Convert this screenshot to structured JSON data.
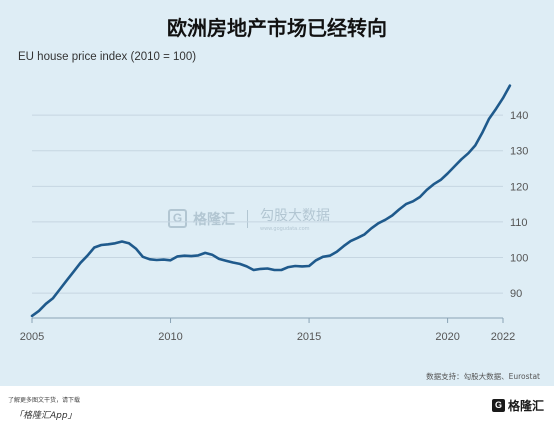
{
  "title": "欧洲房地产市场已经转向",
  "subtitle": "EU house price index (2010 = 100)",
  "source": "数据支持：勾股大数据、Eurostat",
  "watermark": {
    "brand": "格隆汇",
    "site": "勾股大数据",
    "url": "www.gogudata.com"
  },
  "footer": {
    "hint": "了解更多图文干货，请下载",
    "app": "「格隆汇App」",
    "logo_text": "格隆汇"
  },
  "colors": {
    "background": "#deedf5",
    "line": "#1f5a8c",
    "grid": "#c6d6e1"
  },
  "chart_data": {
    "type": "line",
    "title": "欧洲房地产市场已经转向",
    "ylabel": "EU house price index (2010 = 100)",
    "xlim": [
      2005,
      2022
    ],
    "ylim": [
      83,
      151
    ],
    "x_ticks": [
      "2005",
      "2010",
      "2015",
      "2020",
      "2022"
    ],
    "y_ticks": [
      "90",
      "100",
      "110",
      "120",
      "130",
      "140"
    ],
    "grid": true,
    "series": [
      {
        "x": [
          2005.0,
          2005.25,
          2005.5,
          2005.75,
          2006.0,
          2006.25,
          2006.5,
          2006.75,
          2007.0,
          2007.25,
          2007.5,
          2007.75,
          2008.0,
          2008.25,
          2008.5,
          2008.75,
          2009.0,
          2009.25,
          2009.5,
          2009.75,
          2010.0,
          2010.25,
          2010.5,
          2010.75,
          2011.0,
          2011.25,
          2011.5,
          2011.75,
          2012.0,
          2012.25,
          2012.5,
          2012.75,
          2013.0,
          2013.25,
          2013.5,
          2013.75,
          2014.0,
          2014.25,
          2014.5,
          2014.75,
          2015.0,
          2015.25,
          2015.5,
          2015.75,
          2016.0,
          2016.25,
          2016.5,
          2016.75,
          2017.0,
          2017.25,
          2017.5,
          2017.75,
          2018.0,
          2018.25,
          2018.5,
          2018.75,
          2019.0,
          2019.25,
          2019.5,
          2019.75,
          2020.0,
          2020.25,
          2020.5,
          2020.75,
          2021.0,
          2021.25,
          2021.5,
          2021.75,
          2022.0,
          2022.25
        ],
        "values": [
          83.6,
          85.0,
          87.0,
          88.5,
          91.0,
          93.5,
          96.0,
          98.5,
          100.5,
          102.8,
          103.5,
          103.7,
          104.0,
          104.5,
          104.0,
          102.5,
          100.2,
          99.5,
          99.3,
          99.4,
          99.2,
          100.3,
          100.5,
          100.4,
          100.6,
          101.3,
          100.8,
          99.6,
          99.1,
          98.6,
          98.2,
          97.5,
          96.5,
          96.8,
          96.9,
          96.5,
          96.5,
          97.3,
          97.6,
          97.5,
          97.6,
          99.2,
          100.2,
          100.5,
          101.6,
          103.2,
          104.6,
          105.5,
          106.5,
          108.2,
          109.6,
          110.6,
          111.8,
          113.5,
          115.0,
          115.8,
          117.0,
          119.0,
          120.6,
          121.8,
          123.6,
          125.6,
          127.6,
          129.3,
          131.5,
          135.0,
          139.0,
          141.8,
          144.8,
          148.3
        ]
      }
    ]
  }
}
